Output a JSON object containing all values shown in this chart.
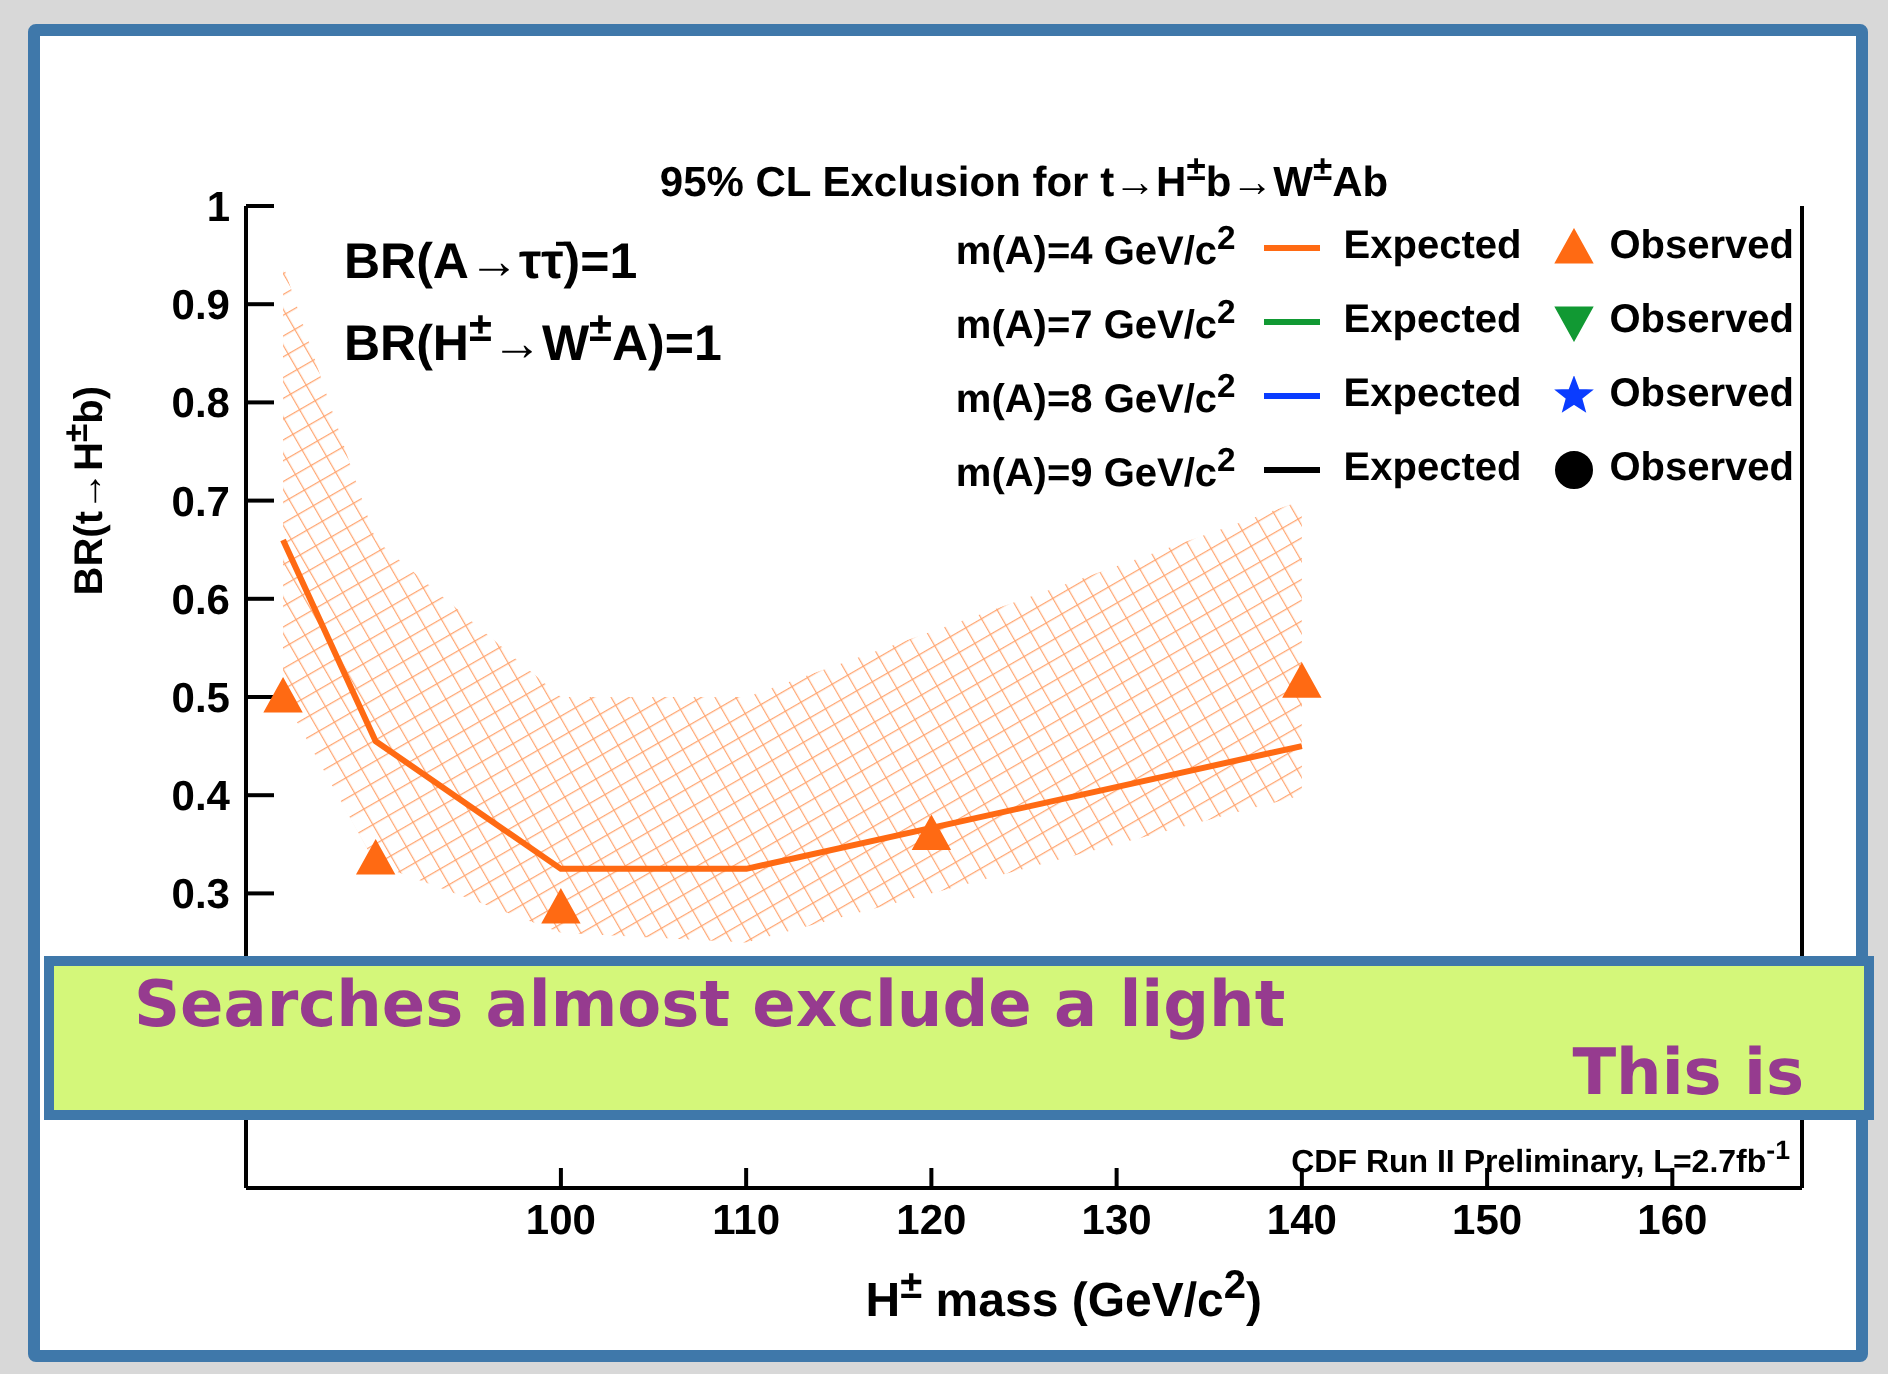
{
  "chart_data": {
    "type": "line",
    "title": "95% CL Exclusion for t→H$^{±}$b→W$^{±}$Ab",
    "xlabel": "H$^{±}$ mass (GeV/c$^{2}$)",
    "ylabel": "BR(t→H$^{±}$b)",
    "xlim": [
      83,
      167
    ],
    "xticks": [
      100,
      110,
      120,
      130,
      140,
      150,
      160
    ],
    "ylim": [
      0,
      1
    ],
    "yticks": [
      0.3,
      0.4,
      0.5,
      0.6,
      0.7,
      0.8,
      0.9,
      1
    ],
    "legend": "top right",
    "series": [
      {
        "name": "Expected",
        "color": "#ff6a13",
        "marker": "none",
        "x": [
          85,
          90,
          100,
          110,
          140
        ],
        "values": [
          0.66,
          0.455,
          0.325,
          0.325,
          0.45
        ],
        "lower": [
          0.5,
          0.33,
          0.26,
          0.25,
          0.4
        ],
        "upper": [
          0.94,
          0.66,
          0.5,
          0.5,
          0.7
        ]
      },
      {
        "name": "Observed",
        "type": "scatter",
        "color": "#ff6a13",
        "marker": "triangle",
        "x": [
          85,
          90,
          100,
          120,
          140
        ],
        "values": [
          0.5,
          0.335,
          0.285,
          0.36,
          0.515
        ]
      },
      {
        "name": "Expected",
        "color": "#119933",
        "marker": "none"
      },
      {
        "name": "Observed",
        "type": "scatter",
        "color": "#119933",
        "marker": "triangle-down"
      },
      {
        "name": "Expected",
        "color": "#0a3cff",
        "marker": "none"
      },
      {
        "name": "Observed",
        "type": "scatter",
        "color": "#0a3cff",
        "marker": "star"
      },
      {
        "name": "Expected",
        "color": "#000000",
        "marker": "none"
      },
      {
        "name": "Observed",
        "type": "scatter",
        "color": "#000000",
        "marker": "circle"
      }
    ],
    "annotations": [
      "m(A)=4 GeV/c$^{2}$",
      "m(A)=7 GeV/c$^{2}$",
      "m(A)=8 GeV/c$^{2}$",
      "m(A)=9 GeV/c$^{2}$",
      "BR(A→ττ̄)=1",
      "BR(H$^{±}$→W$^{±}$A)=1",
      "CDF Run II Preliminary, L=2.7fb$^{-1}$",
      "Searches almost exclude a light",
      "This is"
    ]
  }
}
